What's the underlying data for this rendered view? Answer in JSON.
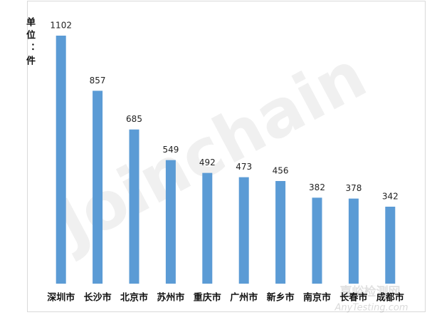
{
  "chart_data": {
    "type": "bar",
    "unit_label": "单位：件",
    "categories": [
      "深圳市",
      "长沙市",
      "北京市",
      "苏州市",
      "重庆市",
      "广州市",
      "新乡市",
      "南京市",
      "长春市",
      "成都市"
    ],
    "values": [
      1102,
      857,
      685,
      549,
      492,
      473,
      456,
      382,
      378,
      342
    ],
    "color": "#5b9bd5"
  },
  "watermarks": {
    "brand": "Joinchain",
    "site_name": "嘉峪检测网",
    "site_url": "AnyTesting.com"
  }
}
